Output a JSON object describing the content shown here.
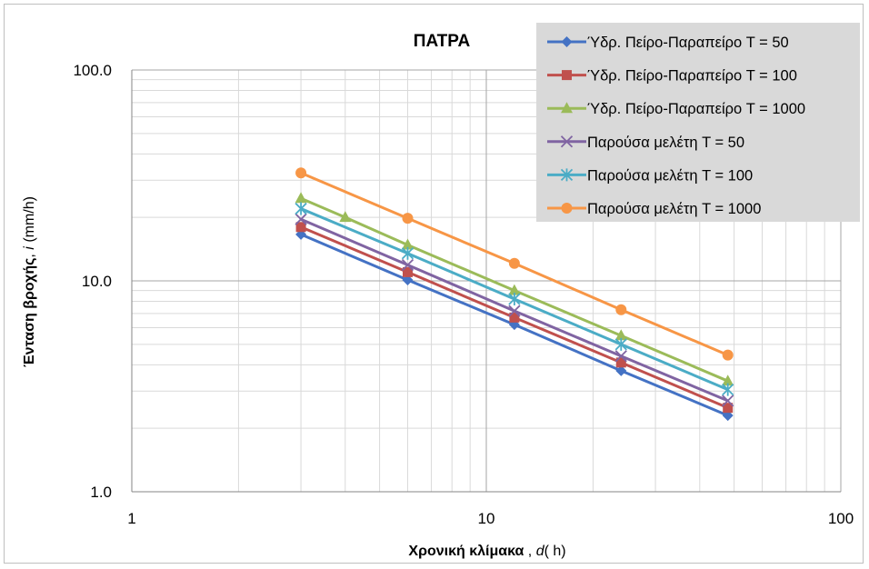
{
  "chart_data": {
    "type": "line",
    "title": "ΠΑΤΡΑ",
    "xlabel_bold": "Χρονική κλίμακα",
    "xlabel_rest": " , ",
    "xlabel_italic": "d",
    "xlabel_unit": "( h)",
    "ylabel_bold": "Ένταση βροχής",
    "ylabel_rest": ", ",
    "ylabel_italic": "i",
    "ylabel_unit": " (mm/h)",
    "x_scale": "log",
    "y_scale": "log",
    "xlim": [
      1,
      100
    ],
    "ylim": [
      1,
      100
    ],
    "x_ticks": [
      1,
      10,
      100
    ],
    "x_tick_labels": [
      "1",
      "10",
      "100"
    ],
    "y_ticks": [
      1,
      10,
      100
    ],
    "y_tick_labels": [
      "1.0",
      "10.0",
      "100.0"
    ],
    "grid": true,
    "legend_position": "top-right",
    "series": [
      {
        "name": "Ύδρ. Πείρο-Παραπείρο T = 50",
        "color": "#4472c4",
        "marker": "diamond",
        "x": [
          3,
          6,
          12,
          24,
          48
        ],
        "y": [
          16.6,
          10.1,
          6.2,
          3.75,
          2.3
        ]
      },
      {
        "name": "Ύδρ. Πείρο-Παραπείρο T = 100",
        "color": "#c0504d",
        "marker": "square",
        "x": [
          3,
          6,
          12,
          24,
          48
        ],
        "y": [
          18.0,
          11.0,
          6.7,
          4.1,
          2.5
        ]
      },
      {
        "name": "Ύδρ. Πείρο-Παραπείρο T = 1000",
        "color": "#9bbb59",
        "marker": "triangle",
        "x": [
          3,
          4,
          6,
          12,
          24,
          48
        ],
        "y": [
          24.6,
          20.0,
          14.8,
          9.0,
          5.5,
          3.35
        ]
      },
      {
        "name": "Παρούσα μελέτη T = 50",
        "color": "#8064a2",
        "marker": "x",
        "x": [
          3,
          6,
          12,
          24,
          48
        ],
        "y": [
          19.6,
          11.9,
          7.2,
          4.4,
          2.7
        ]
      },
      {
        "name": "Παρούσα μελέτη T = 100",
        "color": "#4bacc6",
        "marker": "star",
        "x": [
          3,
          6,
          12,
          24,
          48
        ],
        "y": [
          22.0,
          13.5,
          8.2,
          5.0,
          3.05
        ]
      },
      {
        "name": "Παρούσα μελέτη T = 1000",
        "color": "#f79646",
        "marker": "circle",
        "x": [
          3,
          6,
          12,
          24,
          48
        ],
        "y": [
          32.5,
          19.8,
          12.1,
          7.3,
          4.45
        ]
      }
    ]
  }
}
